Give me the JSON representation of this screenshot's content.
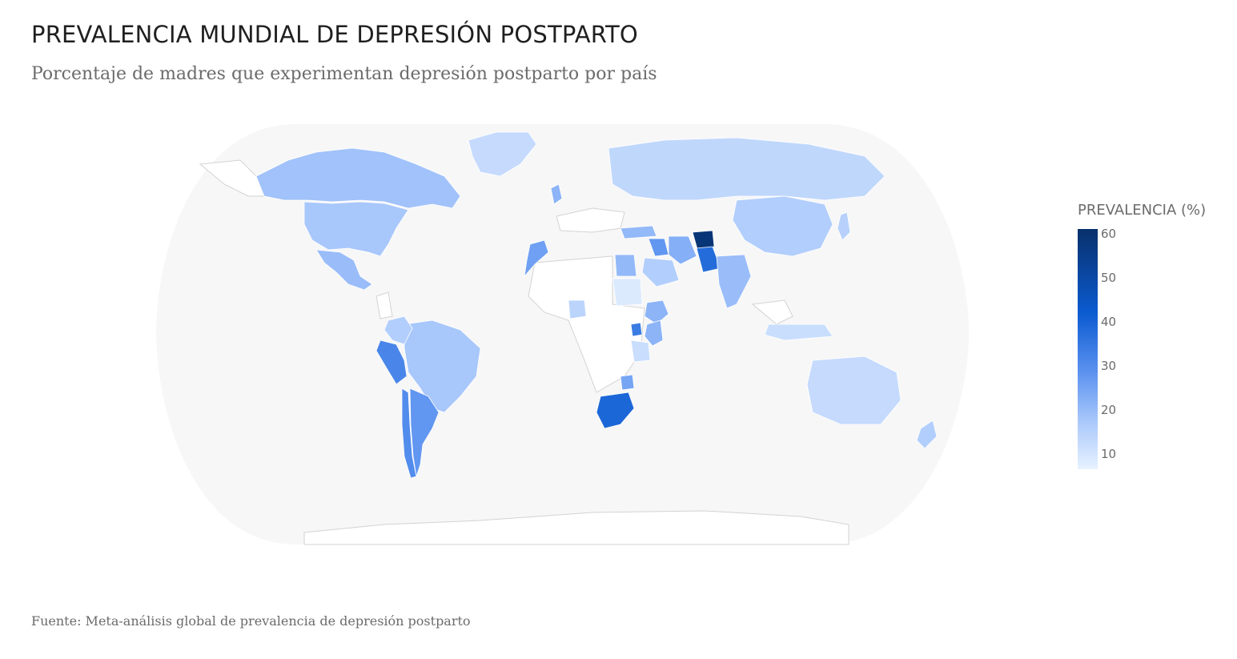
{
  "title": "PREVALENCIA MUNDIAL DE DEPRESIÓN POSTPARTO",
  "subtitle": "Porcentaje de madres que experimentan depresión postparto por país",
  "footer": "Fuente: Meta-análisis global de prevalencia de depresión postparto",
  "legend": {
    "title": "PREVALENCIA (%)",
    "ticks": [
      "60",
      "50",
      "40",
      "30",
      "20",
      "10"
    ],
    "min": 6.5,
    "max": 60
  },
  "colors": {
    "ocean": "#f7f7f7",
    "no_data": "#ffffff",
    "border": "#d3d3d3",
    "scale": [
      "#e8f2ff",
      "#a9c8fb",
      "#5d93f0",
      "#0b5bd1",
      "#08306b"
    ]
  },
  "chart_data": {
    "type": "choropleth",
    "projection": "natural earth",
    "metric": "prevalence_percent",
    "countries": {
      "Canada": 21,
      "United States": 20,
      "Mexico": 22,
      "Brazil": 20,
      "Peru": 33,
      "Argentina": 30,
      "Chile": 32,
      "Colombia": 18,
      "Greenland": 14,
      "Morocco": 28,
      "Egypt": 23,
      "Sudan": 9,
      "Nigeria": 16,
      "Ethiopia": 24,
      "Kenya": 24,
      "Uganda": 35,
      "Tanzania": 13,
      "South Africa": 39,
      "Zimbabwe": 27,
      "United Kingdom": 24,
      "Russia": 15,
      "Turkey": 23,
      "Iran": 25,
      "Iraq": 30,
      "Saudi Arabia": 18,
      "Afghanistan": 58,
      "Pakistan": 38,
      "India": 22,
      "China": 18,
      "Japan": 17,
      "Australia": 14,
      "New Zealand": 18,
      "Indonesia": 13
    }
  }
}
